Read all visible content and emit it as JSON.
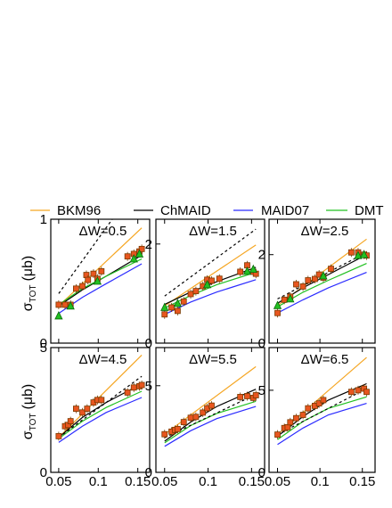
{
  "legend": {
    "items": [
      {
        "name": "BKM96",
        "color": "#f5a623",
        "dash": "solid"
      },
      {
        "name": "ChMAID",
        "color": "#000000",
        "dash": "solid"
      },
      {
        "name": "MAID07",
        "color": "#2b2bff",
        "dash": "solid"
      },
      {
        "name": "DMT",
        "color": "#22c022",
        "dash": "solid"
      }
    ]
  },
  "axes": {
    "ylabel_symbol": "σ",
    "ylabel_sub": "TOT",
    "ylabel_unit": "(μb)",
    "xticks": [
      "0.05",
      "0.1",
      "0.15"
    ]
  },
  "colors": {
    "marker_fill": "#e8561f",
    "marker_edge": "#7a3a00",
    "triangle_fill": "#22c022",
    "frame": "#000000"
  },
  "chart_data": [
    {
      "type": "line",
      "label": "ΔW=0.5",
      "xlim": [
        0.04,
        0.165
      ],
      "ylim": [
        0,
        1.0
      ],
      "yticks": [
        {
          "v": 0,
          "t": "0"
        },
        {
          "v": 1,
          "t": "1"
        }
      ],
      "curves": [
        {
          "name": "BKM96",
          "dash": "solid",
          "x": [
            0.05,
            0.155
          ],
          "y": [
            0.3,
            0.93
          ]
        },
        {
          "name": "ChMAID",
          "dash": "solid",
          "x": [
            0.05,
            0.08,
            0.11,
            0.155
          ],
          "y": [
            0.3,
            0.43,
            0.54,
            0.71
          ]
        },
        {
          "name": "MAID07",
          "dash": "solid",
          "x": [
            0.05,
            0.08,
            0.11,
            0.155
          ],
          "y": [
            0.24,
            0.37,
            0.48,
            0.64
          ]
        },
        {
          "name": "DMT",
          "dash": "solid",
          "x": [
            0.05,
            0.08,
            0.11,
            0.155
          ],
          "y": [
            0.31,
            0.44,
            0.54,
            0.68
          ]
        },
        {
          "name": "ChMAID-dashed",
          "dash": "dashed",
          "x": [
            0.05,
            0.155
          ],
          "y": [
            0.4,
            1.33
          ]
        }
      ],
      "squares": [
        [
          0.05,
          0.31
        ],
        [
          0.058,
          0.31
        ],
        [
          0.065,
          0.31
        ],
        [
          0.072,
          0.44
        ],
        [
          0.08,
          0.46
        ],
        [
          0.085,
          0.55
        ],
        [
          0.087,
          0.51
        ],
        [
          0.094,
          0.56
        ],
        [
          0.099,
          0.52
        ],
        [
          0.104,
          0.58
        ],
        [
          0.137,
          0.7
        ],
        [
          0.145,
          0.72
        ],
        [
          0.152,
          0.74
        ],
        [
          0.155,
          0.76
        ]
      ],
      "triangles": [
        [
          0.05,
          0.22
        ],
        [
          0.065,
          0.3
        ],
        [
          0.099,
          0.5
        ],
        [
          0.145,
          0.68
        ],
        [
          0.152,
          0.72
        ]
      ]
    },
    {
      "type": "line",
      "label": "ΔW=1.5",
      "xlim": [
        0.04,
        0.165
      ],
      "ylim": [
        0,
        2.5
      ],
      "yticks": [
        {
          "v": 0,
          "t": "0"
        },
        {
          "v": 2,
          "t": "2"
        }
      ],
      "curves": [
        {
          "name": "BKM96",
          "dash": "solid",
          "x": [
            0.05,
            0.155
          ],
          "y": [
            0.75,
            1.98
          ]
        },
        {
          "name": "ChMAID",
          "dash": "solid",
          "x": [
            0.05,
            0.08,
            0.11,
            0.155
          ],
          "y": [
            0.78,
            1.03,
            1.24,
            1.53
          ]
        },
        {
          "name": "MAID07",
          "dash": "solid",
          "x": [
            0.05,
            0.08,
            0.11,
            0.155
          ],
          "y": [
            0.58,
            0.83,
            1.03,
            1.28
          ]
        },
        {
          "name": "DMT",
          "dash": "solid",
          "x": [
            0.05,
            0.08,
            0.11,
            0.155
          ],
          "y": [
            0.71,
            0.96,
            1.18,
            1.43
          ]
        },
        {
          "name": "ChMAID-dashed",
          "dash": "dashed",
          "x": [
            0.05,
            0.155
          ],
          "y": [
            0.95,
            2.3
          ]
        }
      ],
      "squares": [
        [
          0.05,
          0.58
        ],
        [
          0.058,
          0.72
        ],
        [
          0.065,
          0.65
        ],
        [
          0.072,
          0.84
        ],
        [
          0.08,
          0.99
        ],
        [
          0.086,
          1.05
        ],
        [
          0.094,
          1.15
        ],
        [
          0.099,
          1.28
        ],
        [
          0.104,
          1.26
        ],
        [
          0.113,
          1.3
        ],
        [
          0.137,
          1.44
        ],
        [
          0.145,
          1.57
        ],
        [
          0.152,
          1.44
        ],
        [
          0.155,
          1.4
        ]
      ],
      "triangles": [
        [
          0.05,
          0.72
        ],
        [
          0.065,
          0.8
        ],
        [
          0.099,
          1.18
        ],
        [
          0.145,
          1.45
        ],
        [
          0.152,
          1.49
        ]
      ]
    },
    {
      "type": "line",
      "label": "ΔW=2.5",
      "xlim": [
        0.04,
        0.165
      ],
      "ylim": [
        0,
        2.8
      ],
      "yticks": [
        {
          "v": 0,
          "t": "0"
        },
        {
          "v": 2,
          "t": "2"
        }
      ],
      "curves": [
        {
          "name": "BKM96",
          "dash": "solid",
          "x": [
            0.05,
            0.155
          ],
          "y": [
            0.85,
            2.35
          ]
        },
        {
          "name": "ChMAID",
          "dash": "solid",
          "x": [
            0.05,
            0.08,
            0.11,
            0.155
          ],
          "y": [
            0.9,
            1.25,
            1.55,
            2.0
          ]
        },
        {
          "name": "MAID07",
          "dash": "solid",
          "x": [
            0.05,
            0.08,
            0.11,
            0.155
          ],
          "y": [
            0.68,
            0.98,
            1.25,
            1.6
          ]
        },
        {
          "name": "DMT",
          "dash": "solid",
          "x": [
            0.05,
            0.08,
            0.11,
            0.155
          ],
          "y": [
            0.82,
            1.15,
            1.42,
            1.8
          ]
        },
        {
          "name": "ChMAID-dashed",
          "dash": "dashed",
          "x": [
            0.05,
            0.155
          ],
          "y": [
            1.0,
            2.05
          ]
        }
      ],
      "squares": [
        [
          0.05,
          0.68
        ],
        [
          0.058,
          0.98
        ],
        [
          0.065,
          1.05
        ],
        [
          0.072,
          1.33
        ],
        [
          0.08,
          1.28
        ],
        [
          0.086,
          1.42
        ],
        [
          0.094,
          1.45
        ],
        [
          0.099,
          1.55
        ],
        [
          0.104,
          1.48
        ],
        [
          0.113,
          1.68
        ],
        [
          0.137,
          2.05
        ],
        [
          0.145,
          2.05
        ],
        [
          0.152,
          2.0
        ],
        [
          0.155,
          1.98
        ]
      ],
      "triangles": [
        [
          0.05,
          0.85
        ],
        [
          0.065,
          1.0
        ],
        [
          0.104,
          1.52
        ],
        [
          0.145,
          1.98
        ],
        [
          0.152,
          2.0
        ]
      ]
    },
    {
      "type": "line",
      "label": "ΔW=4.5",
      "xlim": [
        0.04,
        0.165
      ],
      "ylim": [
        0,
        5.0
      ],
      "yticks": [
        {
          "v": 0,
          "t": "0"
        },
        {
          "v": 5,
          "t": "5"
        }
      ],
      "curves": [
        {
          "name": "BKM96",
          "dash": "solid",
          "x": [
            0.05,
            0.155
          ],
          "y": [
            1.4,
            4.7
          ]
        },
        {
          "name": "ChMAID",
          "dash": "solid",
          "x": [
            0.05,
            0.08,
            0.11,
            0.155
          ],
          "y": [
            1.4,
            2.2,
            2.8,
            3.55
          ]
        },
        {
          "name": "MAID07",
          "dash": "solid",
          "x": [
            0.05,
            0.08,
            0.11,
            0.155
          ],
          "y": [
            1.2,
            1.85,
            2.4,
            3.0
          ]
        },
        {
          "name": "DMT",
          "dash": "solid",
          "x": [
            0.05,
            0.08,
            0.11,
            0.155
          ],
          "y": [
            1.35,
            2.05,
            2.6,
            3.25
          ]
        },
        {
          "name": "ChMAID-dashed",
          "dash": "dashed",
          "x": [
            0.05,
            0.155
          ],
          "y": [
            1.4,
            3.85
          ]
        }
      ],
      "squares": [
        [
          0.05,
          1.45
        ],
        [
          0.058,
          1.85
        ],
        [
          0.062,
          1.9
        ],
        [
          0.065,
          2.05
        ],
        [
          0.072,
          2.55
        ],
        [
          0.08,
          2.4
        ],
        [
          0.086,
          2.55
        ],
        [
          0.094,
          2.8
        ],
        [
          0.099,
          2.9
        ],
        [
          0.104,
          2.9
        ],
        [
          0.137,
          3.2
        ],
        [
          0.145,
          3.4
        ],
        [
          0.152,
          3.45
        ],
        [
          0.155,
          3.5
        ]
      ],
      "triangles": []
    },
    {
      "type": "line",
      "label": "ΔW=5.5",
      "xlim": [
        0.04,
        0.165
      ],
      "ylim": [
        0,
        7.2
      ],
      "yticks": [
        {
          "v": 0,
          "t": "0"
        },
        {
          "v": 5,
          "t": "5"
        }
      ],
      "curves": [
        {
          "name": "BKM96",
          "dash": "solid",
          "x": [
            0.05,
            0.155
          ],
          "y": [
            2.2,
            6.1
          ]
        },
        {
          "name": "ChMAID",
          "dash": "solid",
          "x": [
            0.05,
            0.08,
            0.11,
            0.155
          ],
          "y": [
            1.8,
            2.9,
            3.8,
            4.8
          ]
        },
        {
          "name": "MAID07",
          "dash": "solid",
          "x": [
            0.05,
            0.08,
            0.11,
            0.155
          ],
          "y": [
            1.5,
            2.4,
            3.1,
            3.8
          ]
        },
        {
          "name": "DMT",
          "dash": "solid",
          "x": [
            0.05,
            0.08,
            0.11,
            0.155
          ],
          "y": [
            1.7,
            2.7,
            3.4,
            4.1
          ]
        },
        {
          "name": "ChMAID-dashed",
          "dash": "dashed",
          "x": [
            0.05,
            0.155
          ],
          "y": [
            2.0,
            4.5
          ]
        }
      ],
      "squares": [
        [
          0.05,
          2.2
        ],
        [
          0.058,
          2.35
        ],
        [
          0.062,
          2.45
        ],
        [
          0.065,
          2.5
        ],
        [
          0.072,
          2.9
        ],
        [
          0.08,
          3.15
        ],
        [
          0.086,
          3.2
        ],
        [
          0.094,
          3.45
        ],
        [
          0.099,
          3.7
        ],
        [
          0.104,
          3.85
        ],
        [
          0.137,
          4.35
        ],
        [
          0.145,
          4.4
        ],
        [
          0.152,
          4.3
        ],
        [
          0.155,
          4.45
        ]
      ],
      "triangles": []
    },
    {
      "type": "line",
      "label": "ΔW=6.5",
      "xlim": [
        0.04,
        0.165
      ],
      "ylim": [
        0,
        7.6
      ],
      "yticks": [
        {
          "v": 0,
          "t": "0"
        },
        {
          "v": 5,
          "t": "5"
        }
      ],
      "curves": [
        {
          "name": "BKM96",
          "dash": "solid",
          "x": [
            0.05,
            0.155
          ],
          "y": [
            2.3,
            7.0
          ]
        },
        {
          "name": "ChMAID",
          "dash": "solid",
          "x": [
            0.05,
            0.08,
            0.11,
            0.155
          ],
          "y": [
            2.2,
            3.4,
            4.4,
            5.4
          ]
        },
        {
          "name": "MAID07",
          "dash": "solid",
          "x": [
            0.05,
            0.08,
            0.11,
            0.155
          ],
          "y": [
            1.7,
            2.7,
            3.5,
            4.2
          ]
        },
        {
          "name": "DMT",
          "dash": "solid",
          "x": [
            0.05,
            0.08,
            0.11,
            0.155
          ],
          "y": [
            2.0,
            3.1,
            3.9,
            4.6
          ]
        },
        {
          "name": "ChMAID-dashed",
          "dash": "dashed",
          "x": [
            0.05,
            0.155
          ],
          "y": [
            2.3,
            5.1
          ]
        }
      ],
      "squares": [
        [
          0.05,
          2.3
        ],
        [
          0.058,
          2.7
        ],
        [
          0.062,
          2.75
        ],
        [
          0.065,
          3.05
        ],
        [
          0.072,
          3.3
        ],
        [
          0.08,
          3.5
        ],
        [
          0.086,
          3.9
        ],
        [
          0.094,
          4.05
        ],
        [
          0.099,
          4.2
        ],
        [
          0.104,
          4.4
        ],
        [
          0.137,
          4.9
        ],
        [
          0.145,
          5.0
        ],
        [
          0.152,
          5.1
        ],
        [
          0.155,
          4.9
        ]
      ],
      "triangles": []
    }
  ]
}
